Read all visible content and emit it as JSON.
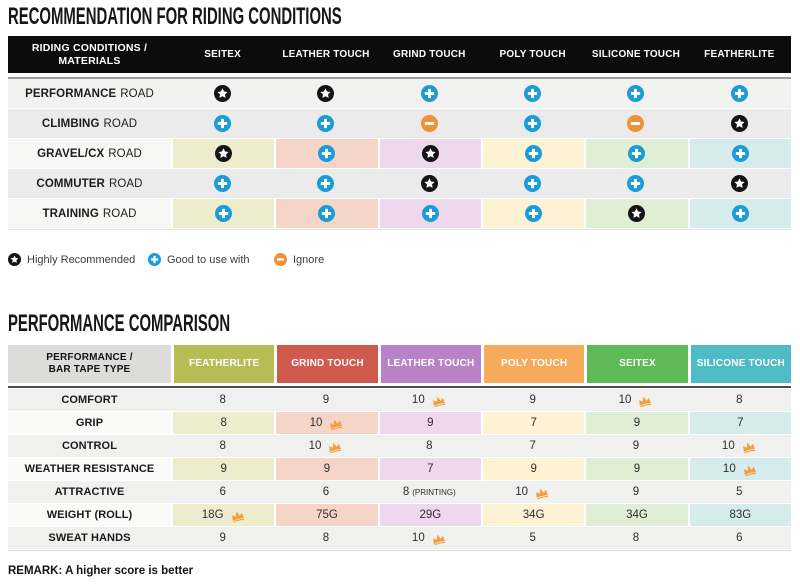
{
  "riding": {
    "title": "RECOMMENDATION FOR RIDING CONDITIONS",
    "header_label": "RIDING CONDITIONS / MATERIALS",
    "columns": [
      "SEITEX",
      "LEATHER TOUCH",
      "GRIND TOUCH",
      "POLY TOUCH",
      "SILICONE TOUCH",
      "FEATHERLITE"
    ],
    "rows": [
      {
        "name": "PERFORMANCE",
        "suffix": "ROAD",
        "style": "plain",
        "icons": [
          "star",
          "star",
          "plus",
          "plus",
          "plus",
          "plus"
        ]
      },
      {
        "name": "CLIMBING",
        "suffix": "ROAD",
        "style": "shaded",
        "icons": [
          "plus",
          "plus",
          "minus",
          "plus",
          "minus",
          "star"
        ]
      },
      {
        "name": "GRAVEL/CX",
        "suffix": "ROAD",
        "style": "tinted",
        "icons": [
          "star",
          "plus",
          "star",
          "plus",
          "plus",
          "plus"
        ]
      },
      {
        "name": "COMMUTER",
        "suffix": "ROAD",
        "style": "shaded",
        "icons": [
          "plus",
          "plus",
          "star",
          "plus",
          "plus",
          "star"
        ]
      },
      {
        "name": "TRAINING",
        "suffix": "ROAD",
        "style": "tinted",
        "icons": [
          "plus",
          "plus",
          "plus",
          "plus",
          "star",
          "plus"
        ]
      }
    ],
    "legend": [
      {
        "icon": "star",
        "label": "Highly Recommended"
      },
      {
        "icon": "plus",
        "label": "Good to use with"
      },
      {
        "icon": "minus",
        "label": "Ignore"
      }
    ]
  },
  "perf": {
    "title": "PERFORMANCE COMPARISON",
    "header_label": "PERFORMANCE / BAR TAPE TYPE",
    "columns": [
      "FEATHERLITE",
      "GRIND TOUCH",
      "LEATHER TOUCH",
      "POLY TOUCH",
      "SEITEX",
      "SILICONE TOUCH"
    ],
    "rows": [
      {
        "label": "COMFORT",
        "style": "solid",
        "cells": [
          {
            "text": "8"
          },
          {
            "text": "9"
          },
          {
            "text": "10",
            "crown": true
          },
          {
            "text": "9"
          },
          {
            "text": "10",
            "crown": true
          },
          {
            "text": "8"
          }
        ]
      },
      {
        "label": "GRIP",
        "style": "tinted",
        "cells": [
          {
            "text": "8"
          },
          {
            "text": "10",
            "crown": true
          },
          {
            "text": "9"
          },
          {
            "text": "7"
          },
          {
            "text": "9"
          },
          {
            "text": "7"
          }
        ]
      },
      {
        "label": "CONTROL",
        "style": "solid",
        "cells": [
          {
            "text": "8"
          },
          {
            "text": "10",
            "crown": true
          },
          {
            "text": "8"
          },
          {
            "text": "7"
          },
          {
            "text": "9"
          },
          {
            "text": "10",
            "crown": true
          }
        ]
      },
      {
        "label": "WEATHER RESISTANCE",
        "style": "tinted",
        "cells": [
          {
            "text": "9"
          },
          {
            "text": "9"
          },
          {
            "text": "7"
          },
          {
            "text": "9"
          },
          {
            "text": "9"
          },
          {
            "text": "10",
            "crown": true
          }
        ]
      },
      {
        "label": "ATTRACTIVE",
        "style": "solid",
        "cells": [
          {
            "text": "6"
          },
          {
            "text": "6"
          },
          {
            "text": "8",
            "note": "(PRINTING)"
          },
          {
            "text": "10",
            "crown": true
          },
          {
            "text": "9"
          },
          {
            "text": "5"
          }
        ]
      },
      {
        "label": "WEIGHT (ROLL)",
        "style": "tinted",
        "cells": [
          {
            "text": "18G",
            "crown": true
          },
          {
            "text": "75G"
          },
          {
            "text": "29G"
          },
          {
            "text": "34G"
          },
          {
            "text": "34G"
          },
          {
            "text": "83G"
          }
        ]
      },
      {
        "label": "SWEAT HANDS",
        "style": "solid",
        "cells": [
          {
            "text": "9"
          },
          {
            "text": "8"
          },
          {
            "text": "10",
            "crown": true
          },
          {
            "text": "5"
          },
          {
            "text": "8"
          },
          {
            "text": "6"
          }
        ]
      }
    ],
    "remark": "REMARK: A higher score is better"
  },
  "colors": {
    "header_palette": [
      "#b9bc55",
      "#d05a4e",
      "#ba82c6",
      "#f6aa5b",
      "#5eba57",
      "#4ebbc5"
    ],
    "tint_palette": [
      "#edeccd",
      "#f6d5c9",
      "#efd8ee",
      "#fdf2d4",
      "#e0eed6",
      "#d5ebec"
    ],
    "icon_star_bg": "#141414",
    "icon_plus_bg": "#1a9cd8",
    "icon_minus_bg": "#ef9135",
    "crown": "#f59d3b"
  },
  "chart_data": [
    {
      "type": "table",
      "title": "RECOMMENDATION FOR RIDING CONDITIONS",
      "columns": [
        "RIDING CONDITIONS / MATERIALS",
        "SEITEX",
        "LEATHER TOUCH",
        "GRIND TOUCH",
        "POLY TOUCH",
        "SILICONE TOUCH",
        "FEATHERLITE"
      ],
      "rows": [
        [
          "PERFORMANCE ROAD",
          "highly-recommended",
          "highly-recommended",
          "good-to-use-with",
          "good-to-use-with",
          "good-to-use-with",
          "good-to-use-with"
        ],
        [
          "CLIMBING ROAD",
          "good-to-use-with",
          "good-to-use-with",
          "ignore",
          "good-to-use-with",
          "ignore",
          "highly-recommended"
        ],
        [
          "GRAVEL/CX ROAD",
          "highly-recommended",
          "good-to-use-with",
          "highly-recommended",
          "good-to-use-with",
          "good-to-use-with",
          "good-to-use-with"
        ],
        [
          "COMMUTER ROAD",
          "good-to-use-with",
          "good-to-use-with",
          "highly-recommended",
          "good-to-use-with",
          "good-to-use-with",
          "highly-recommended"
        ],
        [
          "TRAINING ROAD",
          "good-to-use-with",
          "good-to-use-with",
          "good-to-use-with",
          "good-to-use-with",
          "highly-recommended",
          "good-to-use-with"
        ]
      ],
      "legend": [
        "Highly Recommended",
        "Good to use with",
        "Ignore"
      ]
    },
    {
      "type": "table",
      "title": "PERFORMANCE COMPARISON",
      "columns": [
        "PERFORMANCE / BAR TAPE TYPE",
        "FEATHERLITE",
        "GRIND TOUCH",
        "LEATHER TOUCH",
        "POLY TOUCH",
        "SEITEX",
        "SILICONE TOUCH"
      ],
      "rows": [
        [
          "COMFORT",
          "8",
          "9",
          "10 (best)",
          "9",
          "10 (best)",
          "8"
        ],
        [
          "GRIP",
          "8",
          "10 (best)",
          "9",
          "7",
          "9",
          "7"
        ],
        [
          "CONTROL",
          "8",
          "10 (best)",
          "8",
          "7",
          "9",
          "10 (best)"
        ],
        [
          "WEATHER RESISTANCE",
          "9",
          "9",
          "7",
          "9",
          "9",
          "10 (best)"
        ],
        [
          "ATTRACTIVE",
          "6",
          "6",
          "8 (PRINTING)",
          "10 (best)",
          "9",
          "5"
        ],
        [
          "WEIGHT (ROLL)",
          "18G (best)",
          "75G",
          "29G",
          "34G",
          "34G",
          "83G"
        ],
        [
          "SWEAT HANDS",
          "9",
          "8",
          "10 (best)",
          "5",
          "8",
          "6"
        ]
      ],
      "remark": "REMARK: A higher score is better"
    }
  ]
}
